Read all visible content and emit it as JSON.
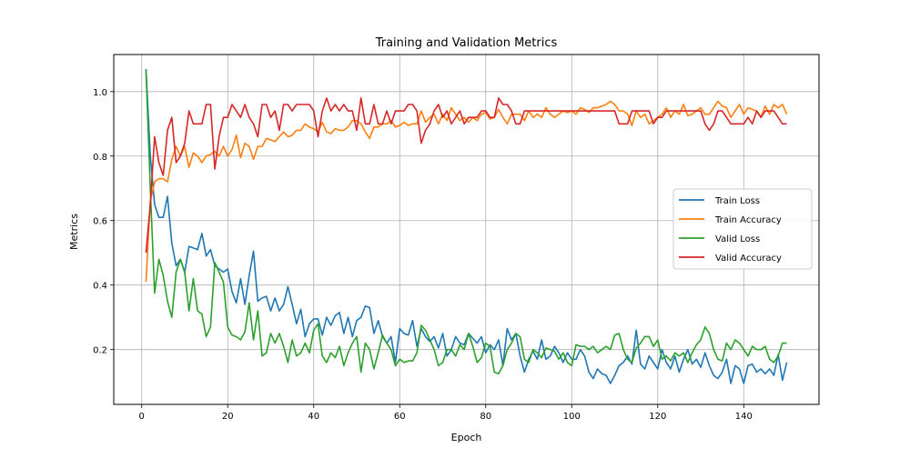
{
  "chart_data": {
    "type": "line",
    "title": "Training and Validation Metrics",
    "xlabel": "Epoch",
    "ylabel": "Metrics",
    "xlim": [
      -6.5,
      157.5
    ],
    "ylim": [
      0.03,
      1.115
    ],
    "xticks": [
      0,
      20,
      40,
      60,
      80,
      100,
      120,
      140
    ],
    "yticks": [
      0.2,
      0.4,
      0.6,
      0.8,
      1.0
    ],
    "grid": true,
    "legend_position": "center-right",
    "x": [
      1,
      2,
      3,
      4,
      5,
      6,
      7,
      8,
      9,
      10,
      11,
      12,
      13,
      14,
      15,
      16,
      17,
      18,
      19,
      20,
      21,
      22,
      23,
      24,
      25,
      26,
      27,
      28,
      29,
      30,
      31,
      32,
      33,
      34,
      35,
      36,
      37,
      38,
      39,
      40,
      41,
      42,
      43,
      44,
      45,
      46,
      47,
      48,
      49,
      50,
      51,
      52,
      53,
      54,
      55,
      56,
      57,
      58,
      59,
      60,
      61,
      62,
      63,
      64,
      65,
      66,
      67,
      68,
      69,
      70,
      71,
      72,
      73,
      74,
      75,
      76,
      77,
      78,
      79,
      80,
      81,
      82,
      83,
      84,
      85,
      86,
      87,
      88,
      89,
      90,
      91,
      92,
      93,
      94,
      95,
      96,
      97,
      98,
      99,
      100,
      101,
      102,
      103,
      104,
      105,
      106,
      107,
      108,
      109,
      110,
      111,
      112,
      113,
      114,
      115,
      116,
      117,
      118,
      119,
      120,
      121,
      122,
      123,
      124,
      125,
      126,
      127,
      128,
      129,
      130,
      131,
      132,
      133,
      134,
      135,
      136,
      137,
      138,
      139,
      140,
      141,
      142,
      143,
      144,
      145,
      146,
      147,
      148,
      149,
      150
    ],
    "series": [
      {
        "name": "Train Loss",
        "color": "#1f77b4",
        "values": [
          1.07,
          0.8,
          0.65,
          0.61,
          0.61,
          0.675,
          0.53,
          0.46,
          0.48,
          0.44,
          0.52,
          0.515,
          0.51,
          0.56,
          0.49,
          0.51,
          0.46,
          0.45,
          0.44,
          0.45,
          0.38,
          0.345,
          0.42,
          0.34,
          0.43,
          0.505,
          0.35,
          0.36,
          0.365,
          0.32,
          0.36,
          0.32,
          0.34,
          0.395,
          0.34,
          0.28,
          0.325,
          0.24,
          0.28,
          0.295,
          0.295,
          0.245,
          0.3,
          0.275,
          0.305,
          0.315,
          0.25,
          0.3,
          0.24,
          0.29,
          0.3,
          0.335,
          0.33,
          0.25,
          0.29,
          0.24,
          0.22,
          0.24,
          0.16,
          0.265,
          0.25,
          0.245,
          0.29,
          0.21,
          0.265,
          0.24,
          0.225,
          0.24,
          0.205,
          0.25,
          0.18,
          0.2,
          0.24,
          0.22,
          0.215,
          0.25,
          0.235,
          0.22,
          0.24,
          0.19,
          0.215,
          0.2,
          0.23,
          0.15,
          0.265,
          0.23,
          0.25,
          0.18,
          0.13,
          0.17,
          0.195,
          0.17,
          0.23,
          0.17,
          0.18,
          0.21,
          0.19,
          0.16,
          0.19,
          0.17,
          0.17,
          0.2,
          0.18,
          0.13,
          0.11,
          0.14,
          0.125,
          0.12,
          0.095,
          0.12,
          0.15,
          0.16,
          0.18,
          0.155,
          0.26,
          0.155,
          0.14,
          0.18,
          0.16,
          0.14,
          0.2,
          0.16,
          0.14,
          0.18,
          0.13,
          0.17,
          0.2,
          0.155,
          0.17,
          0.145,
          0.19,
          0.15,
          0.12,
          0.11,
          0.13,
          0.17,
          0.095,
          0.15,
          0.14,
          0.095,
          0.15,
          0.155,
          0.13,
          0.14,
          0.125,
          0.14,
          0.12,
          0.185,
          0.105,
          0.16
        ]
      },
      {
        "name": "Train Accuracy",
        "color": "#ff7f0e",
        "values": [
          0.41,
          0.66,
          0.72,
          0.73,
          0.73,
          0.72,
          0.79,
          0.83,
          0.8,
          0.83,
          0.765,
          0.81,
          0.8,
          0.78,
          0.8,
          0.805,
          0.815,
          0.8,
          0.83,
          0.8,
          0.82,
          0.865,
          0.795,
          0.84,
          0.83,
          0.79,
          0.83,
          0.83,
          0.855,
          0.85,
          0.845,
          0.86,
          0.875,
          0.86,
          0.865,
          0.88,
          0.88,
          0.9,
          0.89,
          0.885,
          0.875,
          0.905,
          0.875,
          0.87,
          0.885,
          0.88,
          0.88,
          0.89,
          0.91,
          0.91,
          0.9,
          0.875,
          0.855,
          0.89,
          0.89,
          0.9,
          0.9,
          0.91,
          0.89,
          0.895,
          0.905,
          0.895,
          0.9,
          0.9,
          0.94,
          0.905,
          0.92,
          0.93,
          0.9,
          0.93,
          0.91,
          0.95,
          0.93,
          0.91,
          0.92,
          0.905,
          0.92,
          0.91,
          0.93,
          0.935,
          0.915,
          0.92,
          0.945,
          0.92,
          0.9,
          0.93,
          0.93,
          0.93,
          0.91,
          0.94,
          0.92,
          0.93,
          0.92,
          0.95,
          0.93,
          0.92,
          0.93,
          0.94,
          0.935,
          0.94,
          0.93,
          0.95,
          0.945,
          0.935,
          0.95,
          0.95,
          0.955,
          0.96,
          0.97,
          0.96,
          0.94,
          0.94,
          0.93,
          0.895,
          0.94,
          0.92,
          0.93,
          0.9,
          0.91,
          0.92,
          0.93,
          0.95,
          0.92,
          0.94,
          0.93,
          0.96,
          0.925,
          0.93,
          0.94,
          0.95,
          0.93,
          0.93,
          0.95,
          0.97,
          0.955,
          0.95,
          0.92,
          0.94,
          0.96,
          0.93,
          0.95,
          0.945,
          0.94,
          0.92,
          0.955,
          0.93,
          0.96,
          0.95,
          0.96,
          0.93
        ]
      },
      {
        "name": "Valid Loss",
        "color": "#2ca02c",
        "values": [
          1.065,
          0.7,
          0.375,
          0.48,
          0.43,
          0.35,
          0.3,
          0.44,
          0.48,
          0.44,
          0.32,
          0.42,
          0.32,
          0.31,
          0.24,
          0.27,
          0.47,
          0.44,
          0.41,
          0.27,
          0.245,
          0.24,
          0.23,
          0.255,
          0.345,
          0.23,
          0.32,
          0.18,
          0.19,
          0.25,
          0.22,
          0.25,
          0.21,
          0.16,
          0.23,
          0.18,
          0.19,
          0.22,
          0.19,
          0.26,
          0.28,
          0.18,
          0.16,
          0.19,
          0.175,
          0.21,
          0.15,
          0.19,
          0.22,
          0.24,
          0.13,
          0.22,
          0.2,
          0.14,
          0.19,
          0.245,
          0.22,
          0.2,
          0.15,
          0.17,
          0.16,
          0.165,
          0.165,
          0.19,
          0.275,
          0.26,
          0.23,
          0.2,
          0.15,
          0.16,
          0.2,
          0.2,
          0.18,
          0.215,
          0.2,
          0.25,
          0.21,
          0.16,
          0.175,
          0.22,
          0.21,
          0.13,
          0.125,
          0.15,
          0.2,
          0.22,
          0.25,
          0.24,
          0.17,
          0.16,
          0.2,
          0.19,
          0.175,
          0.205,
          0.2,
          0.195,
          0.17,
          0.19,
          0.16,
          0.15,
          0.215,
          0.21,
          0.21,
          0.2,
          0.21,
          0.19,
          0.2,
          0.21,
          0.2,
          0.245,
          0.25,
          0.2,
          0.17,
          0.16,
          0.205,
          0.22,
          0.24,
          0.24,
          0.21,
          0.23,
          0.17,
          0.18,
          0.165,
          0.19,
          0.18,
          0.19,
          0.16,
          0.19,
          0.215,
          0.23,
          0.27,
          0.25,
          0.2,
          0.17,
          0.165,
          0.22,
          0.2,
          0.23,
          0.22,
          0.2,
          0.18,
          0.21,
          0.2,
          0.2,
          0.21,
          0.17,
          0.16,
          0.18,
          0.22,
          0.22
        ]
      },
      {
        "name": "Valid Accuracy",
        "color": "#d62728",
        "values": [
          0.5,
          0.65,
          0.86,
          0.78,
          0.74,
          0.88,
          0.92,
          0.78,
          0.8,
          0.84,
          0.94,
          0.9,
          0.9,
          0.9,
          0.96,
          0.96,
          0.76,
          0.86,
          0.92,
          0.92,
          0.96,
          0.94,
          0.92,
          0.96,
          0.92,
          0.9,
          0.86,
          0.96,
          0.96,
          0.92,
          0.94,
          0.88,
          0.96,
          0.96,
          0.94,
          0.96,
          0.96,
          0.96,
          0.96,
          0.94,
          0.86,
          0.94,
          0.98,
          0.94,
          0.96,
          0.94,
          0.96,
          0.94,
          0.94,
          0.88,
          0.98,
          0.9,
          0.9,
          0.96,
          0.9,
          0.9,
          0.94,
          0.9,
          0.94,
          0.94,
          0.94,
          0.96,
          0.96,
          0.94,
          0.84,
          0.88,
          0.9,
          0.94,
          0.96,
          0.92,
          0.94,
          0.9,
          0.92,
          0.94,
          0.9,
          0.92,
          0.92,
          0.92,
          0.94,
          0.94,
          0.92,
          0.92,
          0.98,
          0.96,
          0.96,
          0.94,
          0.9,
          0.9,
          0.94,
          0.94,
          0.94,
          0.94,
          0.94,
          0.94,
          0.94,
          0.94,
          0.94,
          0.94,
          0.94,
          0.94,
          0.94,
          0.94,
          0.94,
          0.94,
          0.94,
          0.94,
          0.94,
          0.94,
          0.94,
          0.94,
          0.9,
          0.9,
          0.9,
          0.94,
          0.94,
          0.94,
          0.94,
          0.94,
          0.9,
          0.92,
          0.92,
          0.94,
          0.94,
          0.94,
          0.94,
          0.94,
          0.94,
          0.94,
          0.94,
          0.94,
          0.9,
          0.88,
          0.9,
          0.94,
          0.94,
          0.92,
          0.9,
          0.9,
          0.9,
          0.9,
          0.92,
          0.9,
          0.94,
          0.92,
          0.94,
          0.94,
          0.94,
          0.92,
          0.9,
          0.9
        ]
      }
    ]
  }
}
